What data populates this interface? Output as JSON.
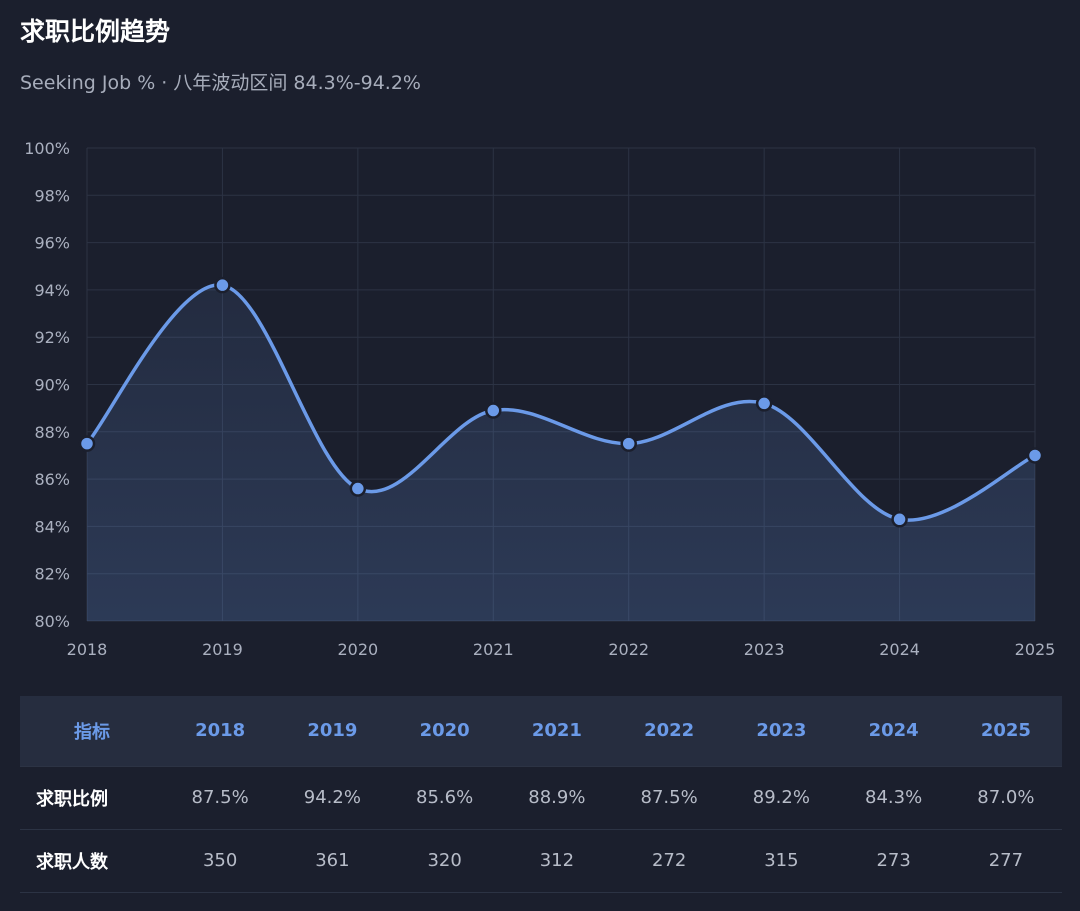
{
  "header": {
    "title": "求职比例趋势",
    "subtitle": "Seeking Job % · 八年波动区间 84.3%-94.2%"
  },
  "colors": {
    "background": "#1b1f2d",
    "line": "#6b9ae8",
    "grid": "#2c3344",
    "header_text": "#6b9ae8"
  },
  "chart_data": {
    "type": "line",
    "title": "求职比例趋势",
    "subtitle": "Seeking Job % · 八年波动区间 84.3%-94.2%",
    "categories": [
      "2018",
      "2019",
      "2020",
      "2021",
      "2022",
      "2023",
      "2024",
      "2025"
    ],
    "series": [
      {
        "values": [
          87.5,
          94.2,
          85.6,
          88.9,
          87.5,
          89.2,
          84.3,
          87.0
        ]
      }
    ],
    "ylim": [
      80,
      100
    ],
    "yticks": [
      "80%",
      "82%",
      "84%",
      "86%",
      "88%",
      "90%",
      "92%",
      "94%",
      "96%",
      "98%",
      "100%"
    ],
    "grid": true,
    "smooth": true,
    "area_fill": true
  },
  "table": {
    "headers": [
      "指标",
      "2018",
      "2019",
      "2020",
      "2021",
      "2022",
      "2023",
      "2024",
      "2025"
    ],
    "rows": [
      {
        "label": "求职比例",
        "cells": [
          "87.5%",
          "94.2%",
          "85.6%",
          "88.9%",
          "87.5%",
          "89.2%",
          "84.3%",
          "87.0%"
        ]
      },
      {
        "label": "求职人数",
        "cells": [
          "350",
          "361",
          "320",
          "312",
          "272",
          "315",
          "273",
          "277"
        ]
      }
    ]
  }
}
